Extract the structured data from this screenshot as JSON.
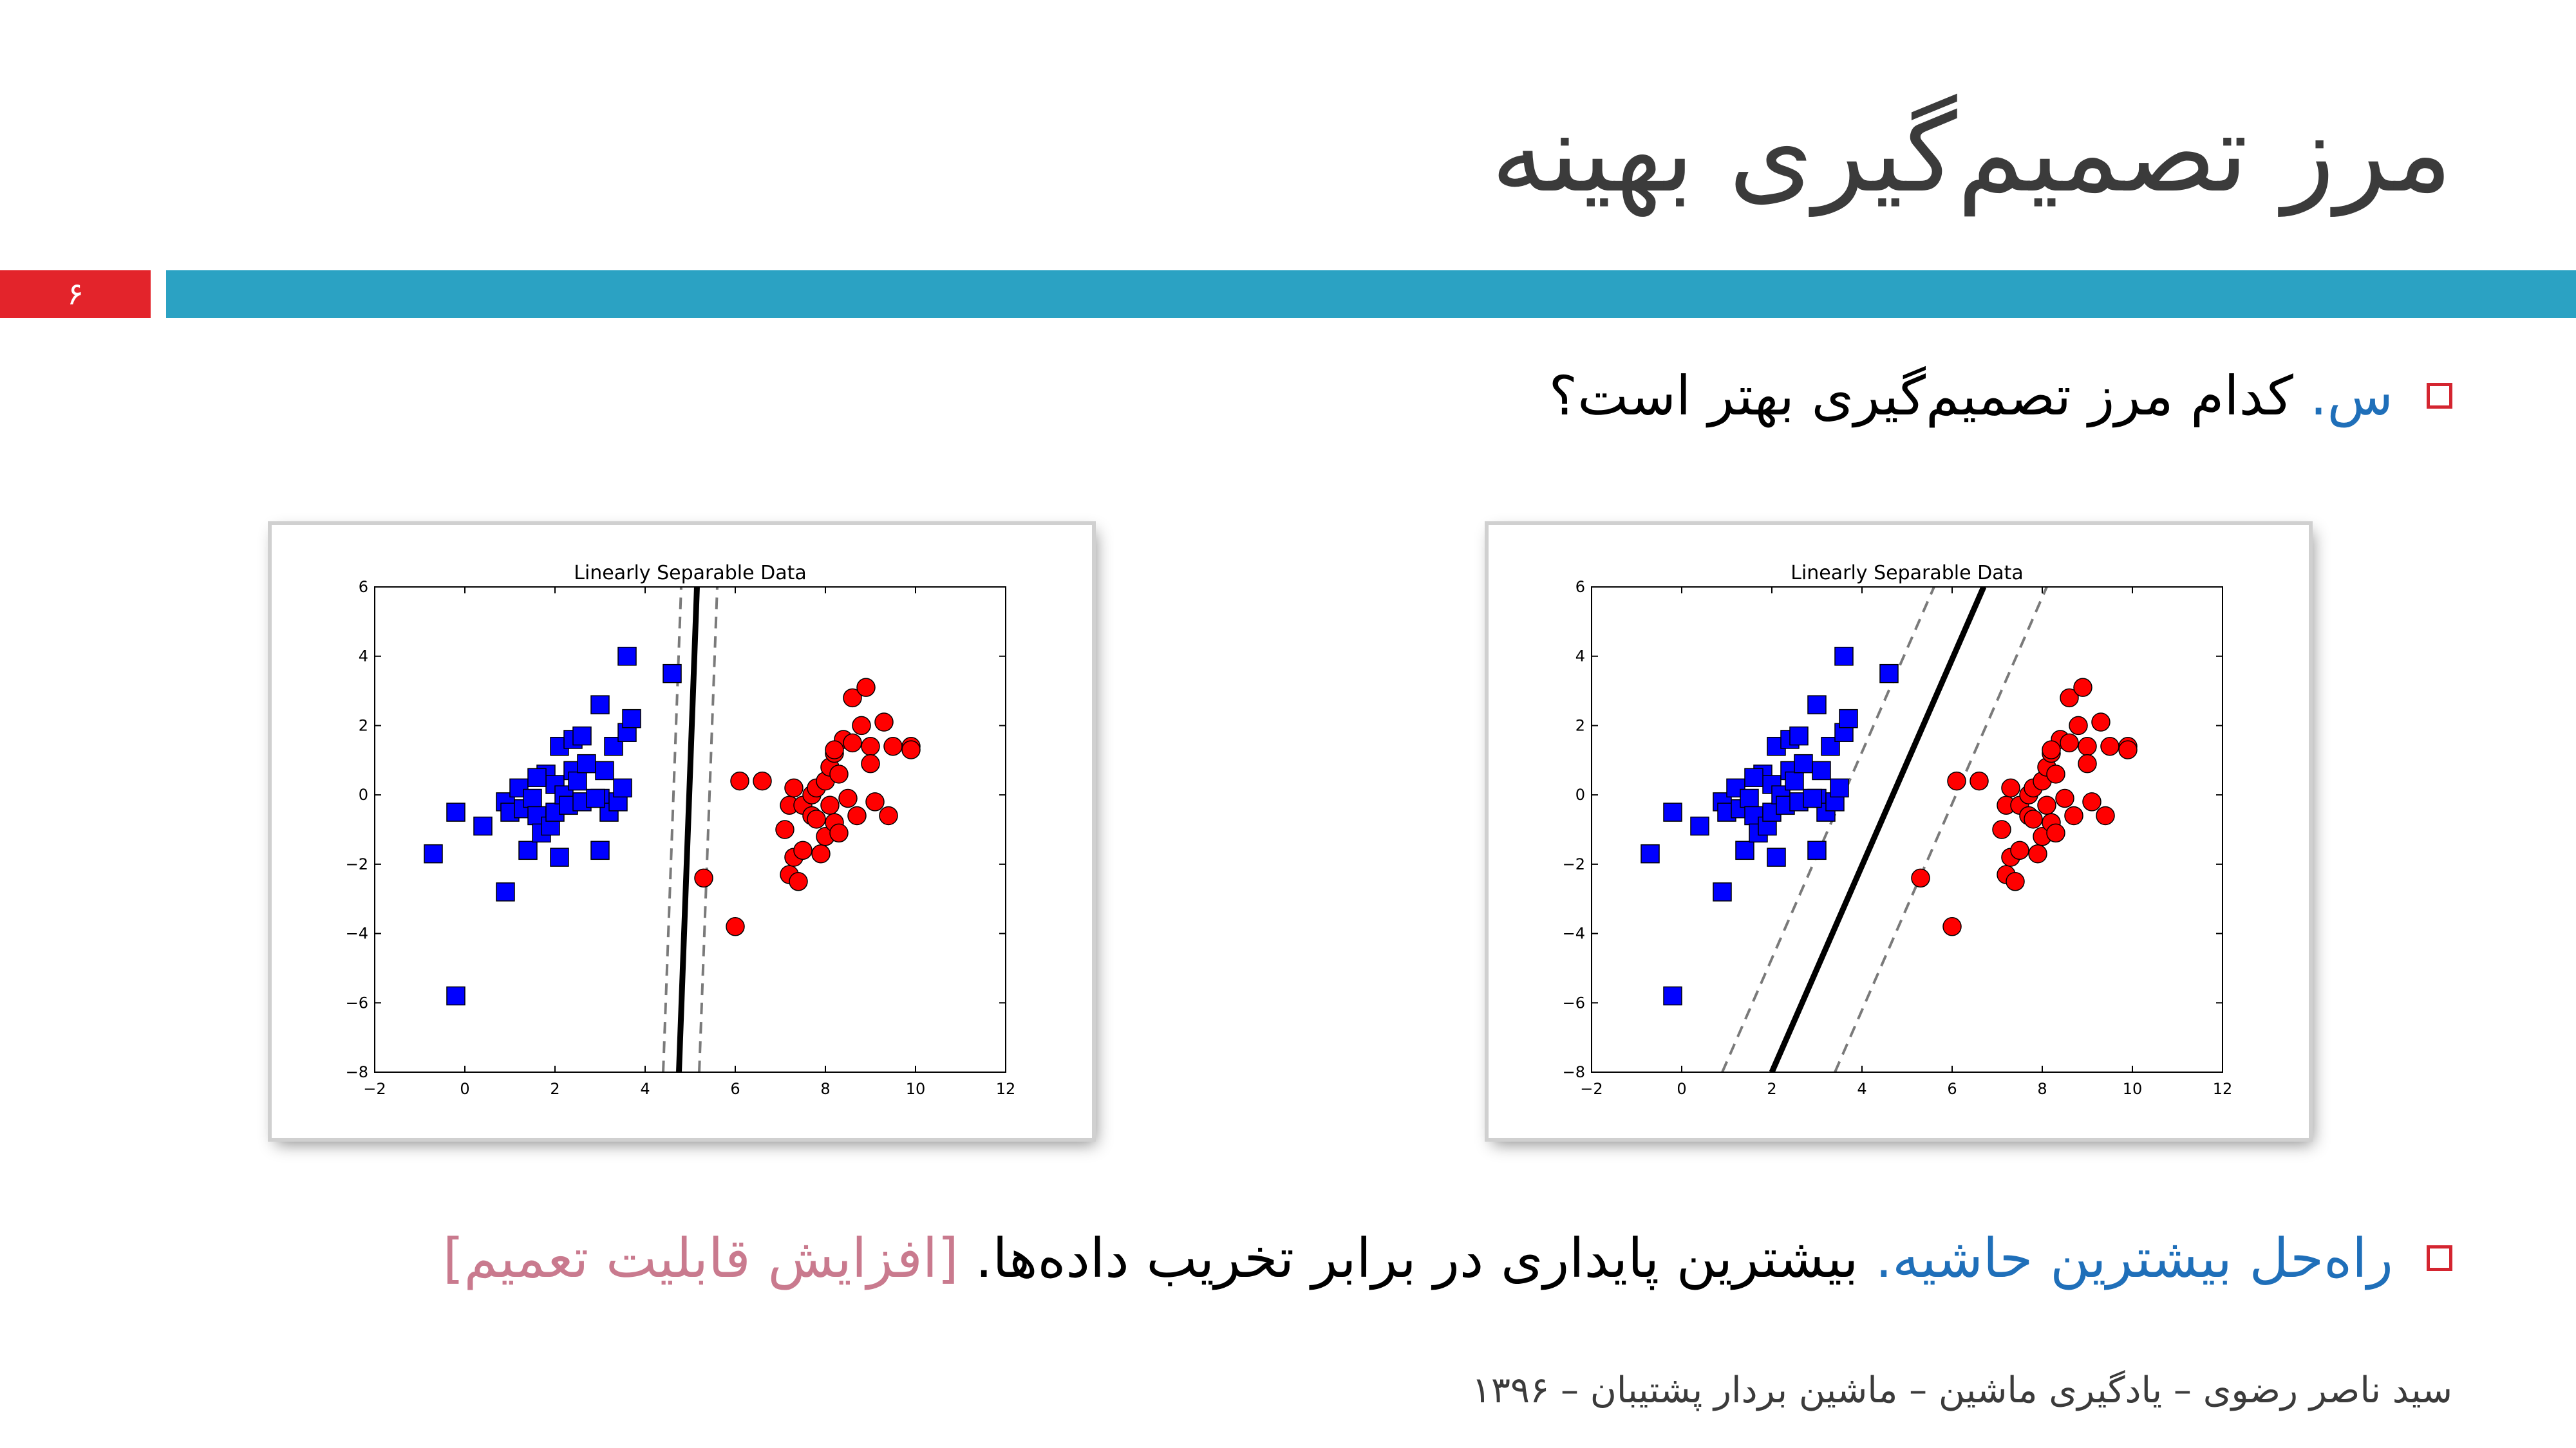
{
  "slide": {
    "title": "مرز تصمیم‌گیری بهینه",
    "slide_number": "۶",
    "question_label": "س.",
    "question_text": "کدام مرز تصمیم‌گیری بهتر است؟",
    "solution_label": "راه‌حل بیشترین حاشیه.",
    "solution_text": "بیشترین پایداری در برابر تخریب داده‌ها.",
    "solution_note": "[افزایش قابلیت تعمیم]",
    "footer": "سید ناصر رضوی – یادگیری ماشین – ماشین بردار پشتیبان – ۱۳۹۶"
  },
  "colors": {
    "accent_red": "#e3242b",
    "accent_teal": "#2ba2c3",
    "link_blue": "#1f6fb9",
    "note_pink": "#c97a8e",
    "class_blue": "#0000ff",
    "class_red": "#ff0000"
  },
  "icons": [
    "checkbox-bullet-icon"
  ],
  "chart_data": [
    {
      "type": "scatter",
      "title": "Linearly Separable Data",
      "xlim": [
        -2,
        12
      ],
      "ylim": [
        -8,
        6
      ],
      "xticks": [
        "−2",
        "0",
        "2",
        "4",
        "6",
        "8",
        "10",
        "12"
      ],
      "yticks": [
        "6",
        "4",
        "2",
        "0",
        "−2",
        "−4",
        "−6",
        "−8"
      ],
      "grid": false,
      "series": [
        {
          "marker": "square",
          "color": "#0000ff",
          "points": [
            [
              -0.7,
              -1.7
            ],
            [
              -0.2,
              -0.5
            ],
            [
              0.4,
              -0.9
            ],
            [
              0.9,
              -0.2
            ],
            [
              1.0,
              -0.5
            ],
            [
              1.2,
              0.2
            ],
            [
              1.3,
              -0.4
            ],
            [
              1.4,
              -1.6
            ],
            [
              1.5,
              -0.1
            ],
            [
              1.6,
              -0.6
            ],
            [
              1.7,
              -1.1
            ],
            [
              1.8,
              0.6
            ],
            [
              1.9,
              -0.9
            ],
            [
              2.0,
              0.3
            ],
            [
              2.0,
              -0.5
            ],
            [
              2.1,
              -1.8
            ],
            [
              2.1,
              1.4
            ],
            [
              2.2,
              0.0
            ],
            [
              2.3,
              -0.3
            ],
            [
              2.4,
              1.6
            ],
            [
              2.4,
              0.7
            ],
            [
              2.5,
              0.4
            ],
            [
              2.6,
              1.7
            ],
            [
              2.6,
              -0.2
            ],
            [
              2.7,
              0.9
            ],
            [
              3.0,
              2.6
            ],
            [
              3.0,
              -0.1
            ],
            [
              3.1,
              0.7
            ],
            [
              3.2,
              -0.5
            ],
            [
              3.3,
              1.4
            ],
            [
              3.4,
              -0.2
            ],
            [
              3.5,
              0.2
            ],
            [
              3.6,
              1.8
            ],
            [
              3.6,
              4.0
            ],
            [
              3.7,
              2.2
            ],
            [
              0.9,
              -2.8
            ],
            [
              -0.2,
              -5.8
            ],
            [
              3.0,
              -1.6
            ],
            [
              1.6,
              0.5
            ],
            [
              2.9,
              -0.1
            ],
            [
              4.6,
              3.5
            ]
          ]
        },
        {
          "marker": "circle",
          "color": "#ff0000",
          "points": [
            [
              5.3,
              -2.4
            ],
            [
              6.0,
              -3.8
            ],
            [
              6.1,
              0.4
            ],
            [
              6.6,
              0.4
            ],
            [
              7.1,
              -1.0
            ],
            [
              7.2,
              -0.3
            ],
            [
              7.2,
              -2.3
            ],
            [
              7.3,
              -1.8
            ],
            [
              7.3,
              0.2
            ],
            [
              7.4,
              -2.5
            ],
            [
              7.5,
              -0.3
            ],
            [
              7.5,
              -1.6
            ],
            [
              7.7,
              0.0
            ],
            [
              7.7,
              -0.6
            ],
            [
              7.8,
              0.2
            ],
            [
              7.9,
              -1.7
            ],
            [
              8.0,
              -1.2
            ],
            [
              8.0,
              0.4
            ],
            [
              8.1,
              -0.3
            ],
            [
              8.1,
              0.8
            ],
            [
              8.2,
              -0.8
            ],
            [
              8.2,
              1.2
            ],
            [
              8.3,
              0.6
            ],
            [
              8.3,
              -1.1
            ],
            [
              8.4,
              1.6
            ],
            [
              8.5,
              -0.1
            ],
            [
              8.6,
              1.5
            ],
            [
              8.6,
              2.8
            ],
            [
              8.7,
              -0.6
            ],
            [
              8.8,
              2.0
            ],
            [
              8.9,
              3.1
            ],
            [
              9.0,
              1.4
            ],
            [
              9.0,
              0.9
            ],
            [
              9.1,
              -0.2
            ],
            [
              9.3,
              2.1
            ],
            [
              9.4,
              -0.6
            ],
            [
              9.5,
              1.4
            ],
            [
              9.9,
              1.4
            ],
            [
              9.9,
              1.3
            ],
            [
              8.2,
              1.3
            ],
            [
              7.8,
              -0.7
            ]
          ]
        }
      ],
      "boundary": {
        "solid": [
          [
            4.75,
            -8
          ],
          [
            5.15,
            6
          ]
        ],
        "dashed": [
          [
            [
              4.4,
              -8
            ],
            [
              4.8,
              6
            ]
          ],
          [
            [
              5.2,
              -8
            ],
            [
              5.6,
              6
            ]
          ]
        ]
      }
    },
    {
      "type": "scatter",
      "title": "Linearly Separable Data",
      "xlim": [
        -2,
        12
      ],
      "ylim": [
        -8,
        6
      ],
      "xticks": [
        "−2",
        "0",
        "2",
        "4",
        "6",
        "8",
        "10",
        "12"
      ],
      "yticks": [
        "6",
        "4",
        "2",
        "0",
        "−2",
        "−4",
        "−6",
        "−8"
      ],
      "grid": false,
      "series": [
        {
          "marker": "square",
          "color": "#0000ff",
          "points": [
            [
              -0.7,
              -1.7
            ],
            [
              -0.2,
              -0.5
            ],
            [
              0.4,
              -0.9
            ],
            [
              0.9,
              -0.2
            ],
            [
              1.0,
              -0.5
            ],
            [
              1.2,
              0.2
            ],
            [
              1.3,
              -0.4
            ],
            [
              1.4,
              -1.6
            ],
            [
              1.5,
              -0.1
            ],
            [
              1.6,
              -0.6
            ],
            [
              1.7,
              -1.1
            ],
            [
              1.8,
              0.6
            ],
            [
              1.9,
              -0.9
            ],
            [
              2.0,
              0.3
            ],
            [
              2.0,
              -0.5
            ],
            [
              2.1,
              -1.8
            ],
            [
              2.1,
              1.4
            ],
            [
              2.2,
              0.0
            ],
            [
              2.3,
              -0.3
            ],
            [
              2.4,
              1.6
            ],
            [
              2.4,
              0.7
            ],
            [
              2.5,
              0.4
            ],
            [
              2.6,
              1.7
            ],
            [
              2.6,
              -0.2
            ],
            [
              2.7,
              0.9
            ],
            [
              3.0,
              2.6
            ],
            [
              3.0,
              -0.1
            ],
            [
              3.1,
              0.7
            ],
            [
              3.2,
              -0.5
            ],
            [
              3.3,
              1.4
            ],
            [
              3.4,
              -0.2
            ],
            [
              3.5,
              0.2
            ],
            [
              3.6,
              1.8
            ],
            [
              3.6,
              4.0
            ],
            [
              3.7,
              2.2
            ],
            [
              0.9,
              -2.8
            ],
            [
              -0.2,
              -5.8
            ],
            [
              3.0,
              -1.6
            ],
            [
              1.6,
              0.5
            ],
            [
              2.9,
              -0.1
            ],
            [
              4.6,
              3.5
            ]
          ]
        },
        {
          "marker": "circle",
          "color": "#ff0000",
          "points": [
            [
              5.3,
              -2.4
            ],
            [
              6.0,
              -3.8
            ],
            [
              6.1,
              0.4
            ],
            [
              6.6,
              0.4
            ],
            [
              7.1,
              -1.0
            ],
            [
              7.2,
              -0.3
            ],
            [
              7.2,
              -2.3
            ],
            [
              7.3,
              -1.8
            ],
            [
              7.3,
              0.2
            ],
            [
              7.4,
              -2.5
            ],
            [
              7.5,
              -0.3
            ],
            [
              7.5,
              -1.6
            ],
            [
              7.7,
              0.0
            ],
            [
              7.7,
              -0.6
            ],
            [
              7.8,
              0.2
            ],
            [
              7.9,
              -1.7
            ],
            [
              8.0,
              -1.2
            ],
            [
              8.0,
              0.4
            ],
            [
              8.1,
              -0.3
            ],
            [
              8.1,
              0.8
            ],
            [
              8.2,
              -0.8
            ],
            [
              8.2,
              1.2
            ],
            [
              8.3,
              0.6
            ],
            [
              8.3,
              -1.1
            ],
            [
              8.4,
              1.6
            ],
            [
              8.5,
              -0.1
            ],
            [
              8.6,
              1.5
            ],
            [
              8.6,
              2.8
            ],
            [
              8.7,
              -0.6
            ],
            [
              8.8,
              2.0
            ],
            [
              8.9,
              3.1
            ],
            [
              9.0,
              1.4
            ],
            [
              9.0,
              0.9
            ],
            [
              9.1,
              -0.2
            ],
            [
              9.3,
              2.1
            ],
            [
              9.4,
              -0.6
            ],
            [
              9.5,
              1.4
            ],
            [
              9.9,
              1.4
            ],
            [
              9.9,
              1.3
            ],
            [
              8.2,
              1.3
            ],
            [
              7.8,
              -0.7
            ]
          ]
        }
      ],
      "boundary": {
        "solid": [
          [
            2.0,
            -8
          ],
          [
            6.7,
            6
          ]
        ],
        "dashed": [
          [
            [
              0.9,
              -8
            ],
            [
              5.6,
              6
            ]
          ],
          [
            [
              3.4,
              -8
            ],
            [
              8.1,
              6
            ]
          ]
        ]
      }
    }
  ]
}
